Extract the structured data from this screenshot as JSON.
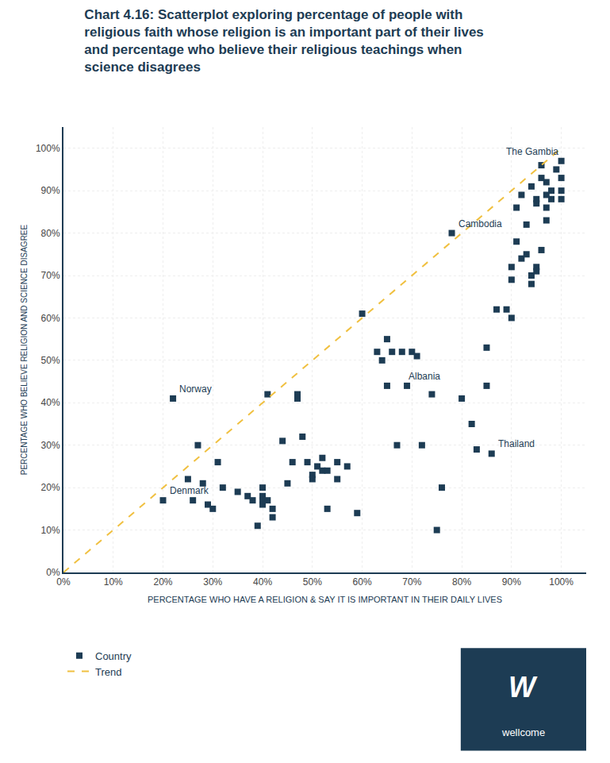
{
  "chart_data": {
    "type": "scatter",
    "title": "Chart 4.16: Scatterplot exploring percentage of people with\nreligious faith whose religion is an important part of their lives\nand percentage who believe their religious teachings when\nscience disagrees",
    "x_label": "PERCENTAGE WHO HAVE A RELIGION & SAY IT IS IMPORTANT IN THEIR DAILY LIVES",
    "y_label": "PERCENTAGE WHO BELIEVE RELIGION AND SCIENCE DISAGREE",
    "xlim": [
      0,
      1.05
    ],
    "ylim": [
      0,
      1.05
    ],
    "xticks": [
      {
        "value": 0.0,
        "label": "0%"
      },
      {
        "value": 0.1,
        "label": "10%"
      },
      {
        "value": 0.2,
        "label": "20%"
      },
      {
        "value": 0.3,
        "label": "30%"
      },
      {
        "value": 0.4,
        "label": "40%"
      },
      {
        "value": 0.5,
        "label": "50%"
      },
      {
        "value": 0.6,
        "label": "60%"
      },
      {
        "value": 0.7,
        "label": "70%"
      },
      {
        "value": 0.8,
        "label": "80%"
      },
      {
        "value": 0.9,
        "label": "90%"
      },
      {
        "value": 1.0,
        "label": "100%"
      }
    ],
    "yticks": [
      {
        "value": 0.0,
        "label": "0%"
      },
      {
        "value": 0.1,
        "label": "10%"
      },
      {
        "value": 0.2,
        "label": "20%"
      },
      {
        "value": 0.3,
        "label": "30%"
      },
      {
        "value": 0.4,
        "label": "40%"
      },
      {
        "value": 0.5,
        "label": "50%"
      },
      {
        "value": 0.6,
        "label": "60%"
      },
      {
        "value": 0.7,
        "label": "70%"
      },
      {
        "value": 0.8,
        "label": "80%"
      },
      {
        "value": 0.9,
        "label": "90%"
      },
      {
        "value": 1.0,
        "label": "100%"
      }
    ],
    "grid": true,
    "legend": "bottom left",
    "series": [
      {
        "name": "Country",
        "type": "scatter",
        "color": "#1d3c54",
        "marker": "square",
        "x": [
          0.2,
          0.22,
          0.25,
          0.26,
          0.27,
          0.28,
          0.29,
          0.3,
          0.31,
          0.32,
          0.35,
          0.37,
          0.38,
          0.39,
          0.4,
          0.4,
          0.4,
          0.4,
          0.41,
          0.41,
          0.42,
          0.42,
          0.44,
          0.45,
          0.46,
          0.47,
          0.47,
          0.48,
          0.49,
          0.5,
          0.5,
          0.51,
          0.52,
          0.52,
          0.53,
          0.53,
          0.55,
          0.55,
          0.57,
          0.59,
          0.6,
          0.63,
          0.64,
          0.65,
          0.65,
          0.66,
          0.67,
          0.68,
          0.69,
          0.7,
          0.71,
          0.72,
          0.74,
          0.75,
          0.76,
          0.78,
          0.8,
          0.82,
          0.83,
          0.85,
          0.85,
          0.86,
          0.87,
          0.89,
          0.9,
          0.9,
          0.9,
          0.91,
          0.91,
          0.92,
          0.92,
          0.93,
          0.93,
          0.94,
          0.94,
          0.94,
          0.95,
          0.95,
          0.95,
          0.95,
          0.96,
          0.96,
          0.96,
          0.97,
          0.97,
          0.97,
          0.97,
          0.98,
          0.98,
          0.99,
          1.0,
          1.0,
          1.0,
          1.0
        ],
        "values": [
          0.17,
          0.41,
          0.22,
          0.17,
          0.3,
          0.21,
          0.16,
          0.15,
          0.26,
          0.2,
          0.19,
          0.18,
          0.17,
          0.11,
          0.2,
          0.18,
          0.17,
          0.16,
          0.42,
          0.17,
          0.15,
          0.13,
          0.31,
          0.21,
          0.26,
          0.42,
          0.41,
          0.32,
          0.26,
          0.23,
          0.22,
          0.25,
          0.27,
          0.24,
          0.15,
          0.24,
          0.26,
          0.22,
          0.25,
          0.14,
          0.61,
          0.52,
          0.5,
          0.55,
          0.44,
          0.52,
          0.3,
          0.52,
          0.44,
          0.52,
          0.51,
          0.3,
          0.42,
          0.1,
          0.2,
          0.8,
          0.41,
          0.35,
          0.29,
          0.53,
          0.44,
          0.28,
          0.62,
          0.62,
          0.72,
          0.6,
          0.69,
          0.78,
          0.86,
          0.74,
          0.89,
          0.75,
          0.82,
          0.7,
          0.68,
          0.91,
          0.87,
          0.88,
          0.72,
          0.71,
          0.76,
          0.96,
          0.93,
          0.89,
          0.86,
          0.83,
          0.92,
          0.9,
          0.88,
          0.95,
          0.97,
          0.93,
          0.9,
          0.88
        ]
      },
      {
        "name": "Trend",
        "type": "line",
        "color": "#f0c040",
        "line_style": "dashed",
        "x": [
          0.0,
          1.0
        ],
        "values": [
          0.0,
          1.0
        ]
      }
    ],
    "annotations": [
      {
        "text": "The Gambia",
        "x": 1.0,
        "y": 0.97
      },
      {
        "text": "Cambodia",
        "x": 0.78,
        "y": 0.8
      },
      {
        "text": "Albania",
        "x": 0.68,
        "y": 0.44
      },
      {
        "text": "Norway",
        "x": 0.22,
        "y": 0.41
      },
      {
        "text": "Denmark",
        "x": 0.2,
        "y": 0.17
      },
      {
        "text": "Thailand",
        "x": 0.86,
        "y": 0.28
      },
      {
        "text": "W",
        "color": "#1d3c54"
      },
      {
        "text": "wellcome",
        "color": "#1d3c54"
      }
    ]
  }
}
